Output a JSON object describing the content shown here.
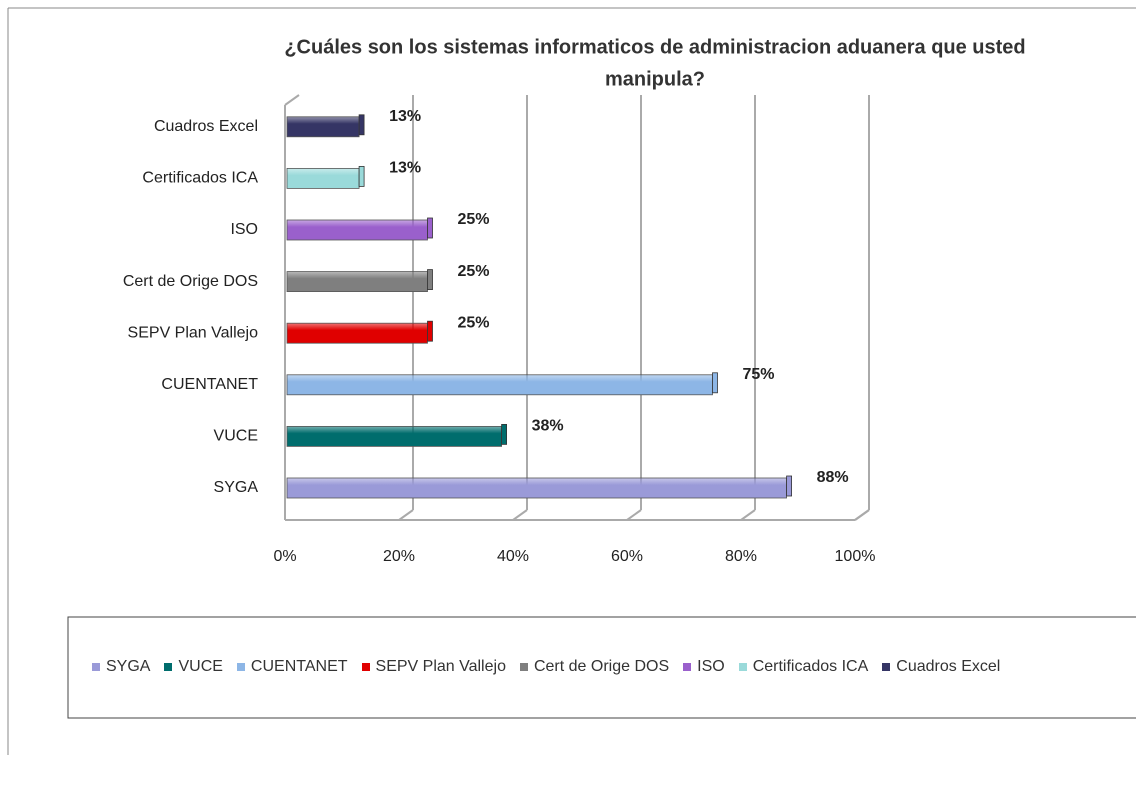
{
  "chart_data": {
    "type": "bar",
    "orientation": "horizontal",
    "title": [
      "¿Cuáles son los sistemas informaticos de administracion aduanera que usted",
      "manipula?"
    ],
    "categories": [
      "SYGA",
      "VUCE",
      "CUENTANET",
      "SEPV Plan Vallejo",
      "Cert de Orige DOS",
      "ISO",
      "Certificados ICA",
      "Cuadros Excel"
    ],
    "values": [
      88,
      38,
      75,
      25,
      25,
      25,
      13,
      13
    ],
    "value_labels": [
      "88%",
      "38%",
      "75%",
      "25%",
      "25%",
      "25%",
      "13%",
      "13%"
    ],
    "colors": [
      "#9a9ad8",
      "#006d6d",
      "#8db6e6",
      "#e00000",
      "#7f7f7f",
      "#9a60cc",
      "#9adada",
      "#353565"
    ],
    "xlim": [
      0,
      100
    ],
    "xticks": [
      {
        "value": 0,
        "label": "0%"
      },
      {
        "value": 20,
        "label": "20%"
      },
      {
        "value": 40,
        "label": "40%"
      },
      {
        "value": 60,
        "label": "60%"
      },
      {
        "value": 80,
        "label": "80%"
      },
      {
        "value": 100,
        "label": "100%"
      }
    ],
    "grid": true,
    "legend": "bottom"
  }
}
